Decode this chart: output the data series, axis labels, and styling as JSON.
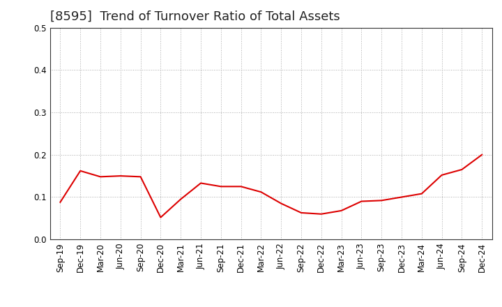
{
  "title": "[8595]  Trend of Turnover Ratio of Total Assets",
  "x_labels": [
    "Sep-19",
    "Dec-19",
    "Mar-20",
    "Jun-20",
    "Sep-20",
    "Dec-20",
    "Mar-21",
    "Jun-21",
    "Sep-21",
    "Dec-21",
    "Mar-22",
    "Jun-22",
    "Sep-22",
    "Dec-22",
    "Mar-23",
    "Jun-23",
    "Sep-23",
    "Dec-23",
    "Mar-24",
    "Jun-24",
    "Sep-24",
    "Dec-24"
  ],
  "y_values": [
    0.088,
    0.162,
    0.148,
    0.15,
    0.148,
    0.052,
    0.095,
    0.133,
    0.125,
    0.125,
    0.112,
    0.085,
    0.063,
    0.06,
    0.068,
    0.09,
    0.092,
    0.1,
    0.108,
    0.152,
    0.165,
    0.2
  ],
  "line_color": "#dd0000",
  "ylim": [
    0.0,
    0.5
  ],
  "yticks": [
    0.0,
    0.1,
    0.2,
    0.3,
    0.4,
    0.5
  ],
  "background_color": "#ffffff",
  "grid_color": "#aaaaaa",
  "title_fontsize": 13,
  "tick_fontsize": 8.5
}
